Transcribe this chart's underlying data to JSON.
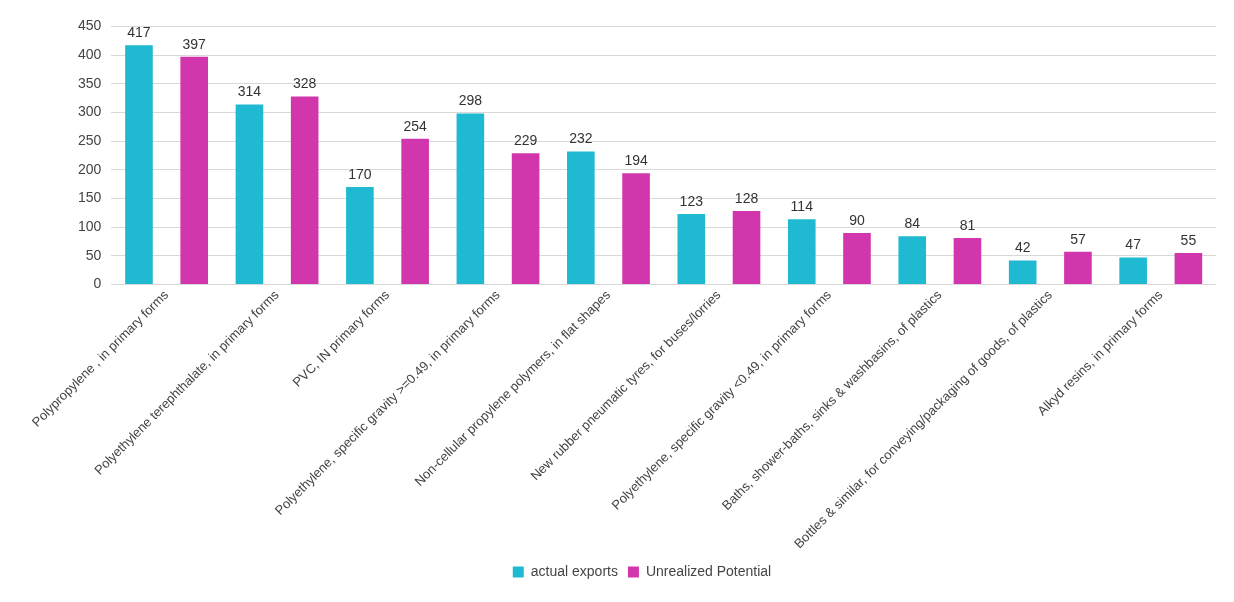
{
  "chart_data": {
    "type": "bar",
    "categories": [
      "Polypropylene , in primary forms",
      "Polyethylene terephthalate, in primary forms",
      "PVC, IN primary forms",
      "Polyethylene, specific gravity >=0.49, in primary forms",
      "Non-cellular propylene polymers, in flat shapes",
      "New rubber pneumatic tyres, for buses/lorries",
      "Polyethylene, specific gravity <0.49, in primary forms",
      "Baths, shower-baths, sinks & washbasins, of plastics",
      "Bottles & similar, for conveying/packaging of goods, of plastics",
      "Alkyd resins, in primary forms"
    ],
    "series": [
      {
        "name": "actual exports",
        "color": "#1fbad1",
        "values": [
          417,
          314,
          170,
          298,
          232,
          123,
          114,
          84,
          42,
          47
        ]
      },
      {
        "name": "Unrealized Potential",
        "color": "#d236ac",
        "values": [
          397,
          328,
          254,
          229,
          194,
          128,
          90,
          81,
          57,
          55
        ]
      }
    ],
    "ylim": [
      0,
      450
    ],
    "yticks": [
      0,
      50,
      100,
      150,
      200,
      250,
      300,
      350,
      400,
      450
    ],
    "grid": "y",
    "legend": "bottom",
    "data_labels": true
  }
}
